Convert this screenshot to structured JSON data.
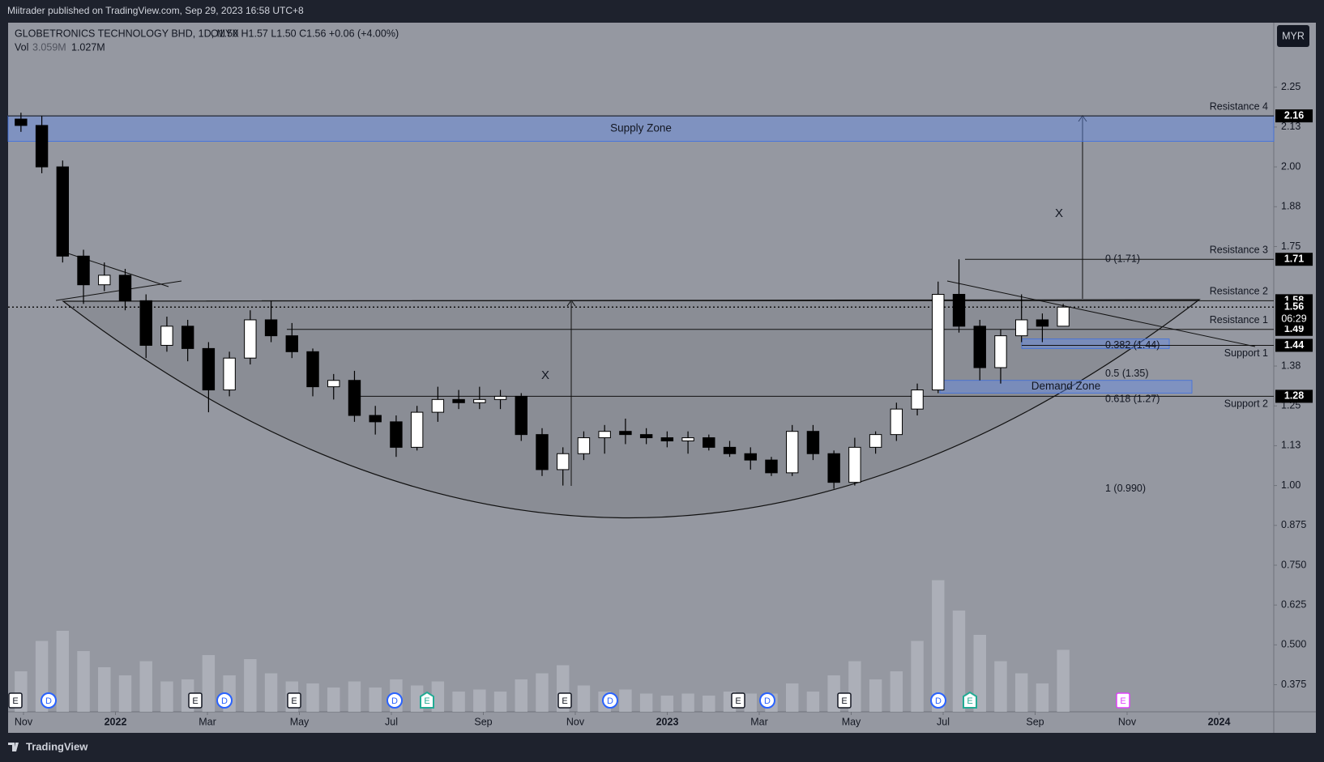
{
  "header": {
    "publisher": "Miitrader published on TradingView.com, Sep 29, 2023 16:58 UTC+8",
    "symbol": "GLOBETRONICS TECHNOLOGY BHD, 1D, MYX",
    "ohlc": "O1.50 H1.57 L1.50 C1.56 +0.06 (+4.00%)",
    "vol_label": "Vol",
    "vol_value": "3.059M",
    "vol_ma": "1.027M",
    "currency": "MYR"
  },
  "footer": {
    "brand": "TradingView"
  },
  "chart_data": {
    "type": "candlestick",
    "open": [
      2.15,
      2.13,
      2.0,
      1.72,
      1.63,
      1.66,
      1.58,
      1.44,
      1.5,
      1.43,
      1.3,
      1.4,
      1.52,
      1.47,
      1.42,
      1.31,
      1.33,
      1.22,
      1.2,
      1.12,
      1.23,
      1.27,
      1.26,
      1.27,
      1.28,
      1.16,
      1.05,
      1.1,
      1.15,
      1.17,
      1.16,
      1.15,
      1.14,
      1.15,
      1.12,
      1.1,
      1.08,
      1.04,
      1.17,
      1.1,
      1.01,
      1.12,
      1.16,
      1.24,
      1.3,
      1.6,
      1.5,
      1.37,
      1.47,
      1.52,
      1.5
    ],
    "high": [
      2.17,
      2.16,
      2.02,
      1.74,
      1.7,
      1.68,
      1.6,
      1.53,
      1.52,
      1.45,
      1.42,
      1.55,
      1.58,
      1.51,
      1.43,
      1.35,
      1.36,
      1.25,
      1.22,
      1.25,
      1.31,
      1.3,
      1.31,
      1.3,
      1.29,
      1.18,
      1.12,
      1.17,
      1.19,
      1.21,
      1.18,
      1.17,
      1.17,
      1.16,
      1.14,
      1.12,
      1.09,
      1.19,
      1.19,
      1.11,
      1.15,
      1.17,
      1.26,
      1.32,
      1.64,
      1.71,
      1.52,
      1.49,
      1.6,
      1.54,
      1.57
    ],
    "low": [
      2.11,
      1.98,
      1.7,
      1.57,
      1.61,
      1.55,
      1.4,
      1.42,
      1.39,
      1.23,
      1.28,
      1.38,
      1.45,
      1.4,
      1.28,
      1.27,
      1.2,
      1.16,
      1.09,
      1.11,
      1.2,
      1.24,
      1.24,
      1.24,
      1.14,
      1.03,
      1.0,
      1.08,
      1.1,
      1.13,
      1.13,
      1.12,
      1.1,
      1.11,
      1.09,
      1.05,
      1.03,
      1.03,
      1.08,
      0.99,
      1.0,
      1.1,
      1.14,
      1.22,
      1.29,
      1.48,
      1.33,
      1.32,
      1.45,
      1.45,
      1.5
    ],
    "close": [
      2.13,
      2.0,
      1.72,
      1.63,
      1.66,
      1.58,
      1.44,
      1.5,
      1.43,
      1.3,
      1.4,
      1.52,
      1.47,
      1.42,
      1.31,
      1.33,
      1.22,
      1.2,
      1.12,
      1.23,
      1.27,
      1.26,
      1.27,
      1.28,
      1.16,
      1.05,
      1.1,
      1.15,
      1.17,
      1.16,
      1.15,
      1.14,
      1.15,
      1.12,
      1.1,
      1.08,
      1.04,
      1.17,
      1.1,
      1.01,
      1.12,
      1.16,
      1.24,
      1.3,
      1.6,
      1.5,
      1.37,
      1.47,
      1.52,
      1.5,
      1.56
    ],
    "volume": [
      2.0,
      3.5,
      4.0,
      3.0,
      2.2,
      1.8,
      2.5,
      1.5,
      1.6,
      2.8,
      1.8,
      2.6,
      1.9,
      1.5,
      1.4,
      1.2,
      1.5,
      1.2,
      1.6,
      1.3,
      1.5,
      1.0,
      1.1,
      1.0,
      1.6,
      1.9,
      2.3,
      1.3,
      1.0,
      1.1,
      0.9,
      0.8,
      0.9,
      0.8,
      1.0,
      0.9,
      0.9,
      1.4,
      1.0,
      1.8,
      2.5,
      1.6,
      2.0,
      3.5,
      6.5,
      5.0,
      3.8,
      2.5,
      1.9,
      1.4,
      3.059
    ],
    "vlim": [
      0,
      10
    ],
    "up_color": "#ffffff",
    "down_color": "#000000",
    "volume_color": "#b2b5be",
    "ylim": [
      0.29,
      2.45
    ],
    "yticks": [
      2.25,
      {
        "value": 2.125,
        "label": "2.13"
      },
      {
        "value": 2,
        "label": "2.00"
      },
      {
        "value": 1.875,
        "label": "1.88"
      },
      1.75,
      {
        "value": 1.375,
        "label": "1.38"
      },
      1.25,
      {
        "value": 1.125,
        "label": "1.13"
      },
      {
        "value": 1,
        "label": "1.00"
      },
      0.875,
      {
        "value": 0.75,
        "label": "0.750"
      },
      0.625,
      {
        "value": 0.5,
        "label": "0.500"
      },
      0.375
    ],
    "xticks": [
      "Nov",
      "2022",
      "Mar",
      "May",
      "Jul",
      "Sep",
      "Nov",
      "2023",
      "Mar",
      "May",
      "Jul",
      "Sep",
      "Nov",
      "2024"
    ],
    "levels": [
      {
        "name": "Resistance 4",
        "value": 2.16
      },
      {
        "name": "Resistance 3",
        "value": 1.71
      },
      {
        "name": "Resistance 2",
        "value": 1.58
      },
      {
        "name": "Resistance 1",
        "value": 1.49
      },
      {
        "name": "Support 1",
        "value": 1.44
      },
      {
        "name": "Support 2",
        "value": 1.28
      }
    ],
    "last": {
      "value": 1.56,
      "countdown": "06:29"
    },
    "zones": [
      {
        "label": "Supply Zone",
        "range": [
          2.08,
          2.16
        ]
      },
      {
        "label": "Demand Zone",
        "range": [
          1.29,
          1.33
        ]
      },
      {
        "range": [
          1.43,
          1.46
        ]
      }
    ],
    "fib": [
      {
        "label": "0 (1.71)",
        "value": 1.71
      },
      {
        "label": "0.382 (1.44)",
        "value": 1.44
      },
      {
        "label": "0.5 (1.35)",
        "value": 1.35
      },
      {
        "label": "0.618 (1.27)",
        "value": 1.27
      },
      {
        "label": "1 (0.990)",
        "value": 0.99
      }
    ],
    "annotations": [
      "X",
      "X"
    ],
    "events": [
      "E",
      "D",
      "E",
      "D",
      "E",
      "D",
      "E",
      "E",
      "D",
      "E",
      "D",
      "E",
      "D",
      "E",
      "E"
    ]
  }
}
